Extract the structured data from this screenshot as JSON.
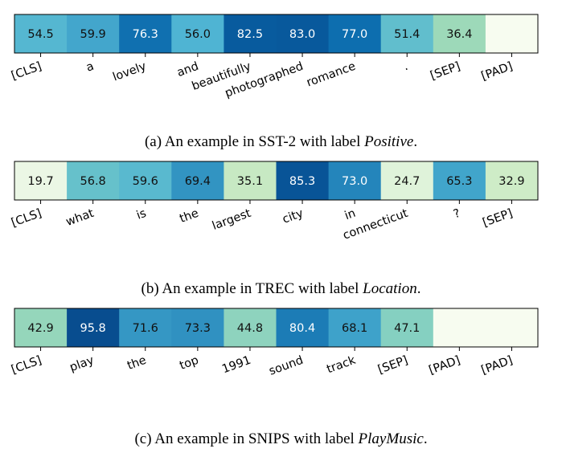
{
  "chart_data": [
    {
      "type": "heatmap",
      "caption_prefix": "(a) An example in SST-2 with label ",
      "caption_label": "Positive",
      "caption_suffix": ".",
      "tokens": [
        "[CLS]",
        "a",
        "lovely",
        "and",
        "beautifully",
        "photographed",
        "romance",
        ".",
        "[SEP]",
        "[PAD]"
      ],
      "values": [
        54.5,
        59.9,
        76.3,
        56.0,
        82.5,
        83.0,
        77.0,
        51.4,
        36.4,
        null
      ],
      "colormap": "GnBu",
      "vmin": 0,
      "vmax": 90
    },
    {
      "type": "heatmap",
      "caption_prefix": "(b) An example in TREC with label ",
      "caption_label": "Location",
      "caption_suffix": ".",
      "tokens": [
        "[CLS]",
        "what",
        "is",
        "the",
        "largest",
        "city",
        "in",
        "connecticut",
        "?",
        "[SEP]"
      ],
      "values": [
        19.7,
        56.8,
        59.6,
        69.4,
        35.1,
        85.3,
        73.0,
        24.7,
        65.3,
        32.9
      ],
      "colormap": "GnBu",
      "vmin": 15,
      "vmax": 90
    },
    {
      "type": "heatmap",
      "caption_prefix": "(c) An example in SNIPS with label ",
      "caption_label": "PlayMusic",
      "caption_suffix": ".",
      "tokens": [
        "[CLS]",
        "play",
        "the",
        "top",
        "1991",
        "sound",
        "track",
        "[SEP]",
        "[PAD]",
        "[PAD]"
      ],
      "values": [
        42.9,
        95.8,
        71.6,
        73.3,
        44.8,
        80.4,
        68.1,
        47.1,
        null,
        null
      ],
      "colormap": "GnBu",
      "vmin": 0,
      "vmax": 100
    }
  ]
}
